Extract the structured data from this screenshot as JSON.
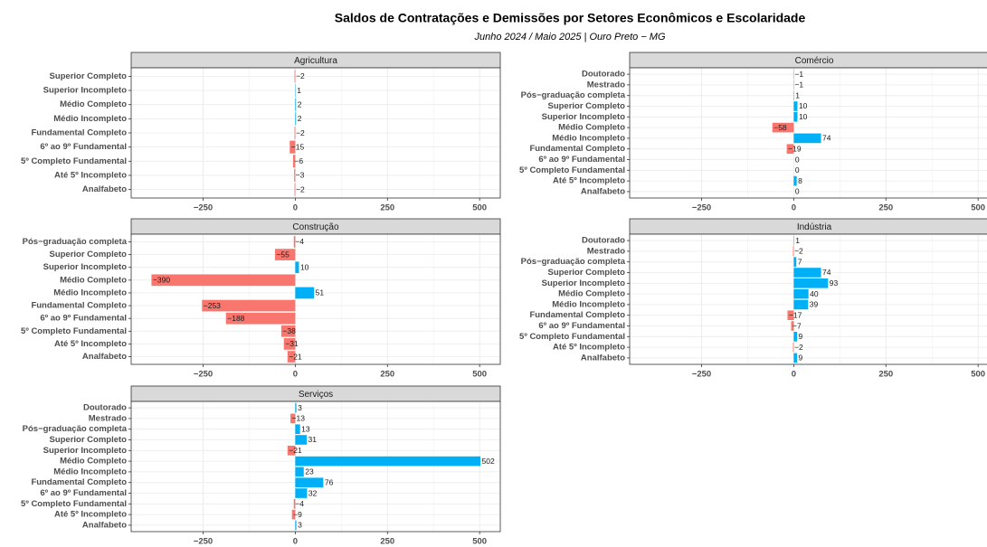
{
  "title": "Saldos de Contratações e Demissões por Setores Econômicos e Escolaridade",
  "subtitle": "Junho 2024 / Maio 2025 | Ouro Preto − MG",
  "colors": {
    "negative": "#F8766D",
    "positive": "#00B0F6"
  },
  "grid": true,
  "chart_data": [
    {
      "type": "bar",
      "title": "Agricultura",
      "categories": [
        "Superior Completo",
        "Superior Incompleto",
        "Médio Completo",
        "Médio Incompleto",
        "Fundamental Completo",
        "6º ao 9º Fundamental",
        "5º Completo Fundamental",
        "Até 5º Incompleto",
        "Analfabeto"
      ],
      "values": [
        -2,
        1,
        2,
        2,
        -2,
        -15,
        -6,
        -3,
        -2
      ],
      "value_labels": [
        "−2",
        "1",
        "2",
        "2",
        "−2",
        "−15",
        "−6",
        "−3",
        "−2"
      ],
      "xlim": [
        -445,
        556
      ],
      "xticks": [
        {
          "value": -250,
          "label": "−250"
        },
        0,
        250,
        500
      ]
    },
    {
      "type": "bar",
      "title": "Comércio",
      "categories": [
        "Doutorado",
        "Mestrado",
        "Pós−graduação completa",
        "Superior Completo",
        "Superior Incompleto",
        "Médio Completo",
        "Médio Incompleto",
        "Fundamental Completo",
        "6º ao 9º Fundamental",
        "5º Completo Fundamental",
        "Até 5º Incompleto",
        "Analfabeto"
      ],
      "values": [
        -1,
        -1,
        1,
        10,
        10,
        -58,
        74,
        -19,
        0,
        0,
        8,
        0
      ],
      "value_labels": [
        "−1",
        "−1",
        "1",
        "10",
        "10",
        "−58",
        "74",
        "−19",
        "0",
        "0",
        "8",
        "0"
      ],
      "xlim": [
        -445,
        556
      ],
      "xticks": [
        {
          "value": -250,
          "label": "−250"
        },
        0,
        250,
        500
      ]
    },
    {
      "type": "bar",
      "title": "Construção",
      "categories": [
        "Pós−graduação completa",
        "Superior Completo",
        "Superior Incompleto",
        "Médio Completo",
        "Médio Incompleto",
        "Fundamental Completo",
        "6º ao 9º Fundamental",
        "5º Completo Fundamental",
        "Até 5º Incompleto",
        "Analfabeto"
      ],
      "values": [
        -4,
        -55,
        10,
        -390,
        51,
        -253,
        -188,
        -38,
        -31,
        -21
      ],
      "value_labels": [
        "−4",
        "−55",
        "10",
        "−390",
        "51",
        "−253",
        "−188",
        "−38",
        "−31",
        "−21"
      ],
      "xlim": [
        -445,
        556
      ],
      "xticks": [
        {
          "value": -250,
          "label": "−250"
        },
        0,
        250,
        500
      ]
    },
    {
      "type": "bar",
      "title": "Indústria",
      "categories": [
        "Doutorado",
        "Mestrado",
        "Pós−graduação completa",
        "Superior Completo",
        "Superior Incompleto",
        "Médio Completo",
        "Médio Incompleto",
        "Fundamental Completo",
        "6º ao 9º Fundamental",
        "5º Completo Fundamental",
        "Até 5º Incompleto",
        "Analfabeto"
      ],
      "values": [
        1,
        -2,
        7,
        74,
        93,
        40,
        39,
        -17,
        -7,
        9,
        -2,
        9
      ],
      "value_labels": [
        "1",
        "−2",
        "7",
        "74",
        "93",
        "40",
        "39",
        "−17",
        "−7",
        "9",
        "−2",
        "9"
      ],
      "xlim": [
        -445,
        556
      ],
      "xticks": [
        {
          "value": -250,
          "label": "−250"
        },
        0,
        250,
        500
      ]
    },
    {
      "type": "bar",
      "title": "Serviços",
      "categories": [
        "Doutorado",
        "Mestrado",
        "Pós−graduação completa",
        "Superior Completo",
        "Superior Incompleto",
        "Médio Completo",
        "Médio Incompleto",
        "Fundamental Completo",
        "6º ao 9º Fundamental",
        "5º Completo Fundamental",
        "Até 5º Incompleto",
        "Analfabeto"
      ],
      "values": [
        3,
        -13,
        13,
        31,
        -21,
        502,
        23,
        76,
        32,
        -4,
        -9,
        3
      ],
      "value_labels": [
        "3",
        "−13",
        "13",
        "31",
        "−21",
        "502",
        "23",
        "76",
        "32",
        "−4",
        "−9",
        "3"
      ],
      "xlim": [
        -445,
        556
      ],
      "xticks": [
        {
          "value": -250,
          "label": "−250"
        },
        0,
        250,
        500
      ]
    }
  ]
}
